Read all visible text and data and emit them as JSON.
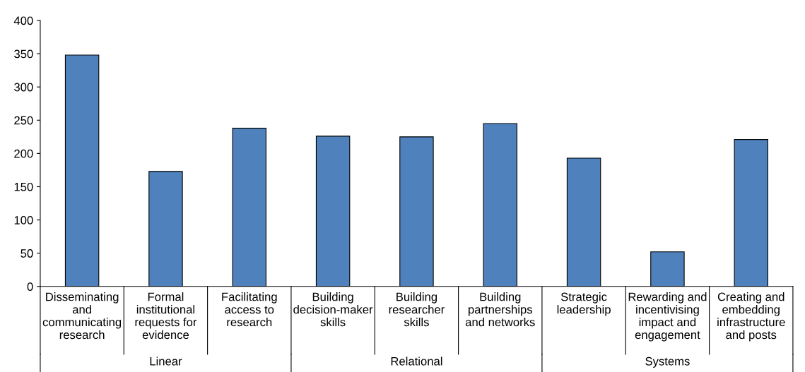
{
  "chart_data": {
    "type": "bar",
    "categories": [
      "Disseminating\nand\ncommunicating\nresearch",
      "Formal\ninstitutional\nrequests for\nevidence",
      "Facilitating\naccess to\nresearch",
      "Building\ndecision-maker\nskills",
      "Building\nresearcher\nskills",
      "Building\npartnerships\nand networks",
      "Strategic\nleadership",
      "Rewarding and\nincentivising\nimpact and\nengagement",
      "Creating and\nembedding\ninfrastructure\nand posts"
    ],
    "values": [
      348,
      173,
      238,
      226,
      225,
      245,
      193,
      52,
      221
    ],
    "color": "#4f81bd",
    "ylim": [
      0,
      400
    ],
    "yticks": [
      0,
      50,
      100,
      150,
      200,
      250,
      300,
      350,
      400
    ],
    "grid": false,
    "annotations": [
      "Linear",
      "Relational",
      "Systems"
    ]
  }
}
